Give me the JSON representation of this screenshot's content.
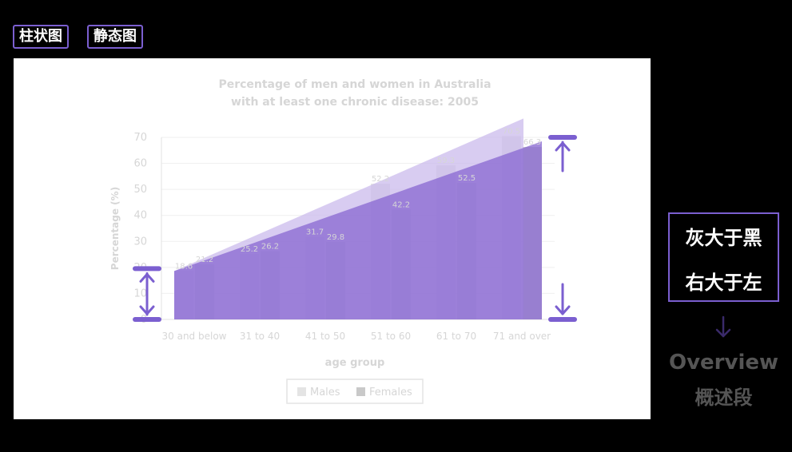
{
  "tags": [
    "柱状图",
    "静态图"
  ],
  "side_box": [
    "灰大于黑",
    "右大于左"
  ],
  "overview": [
    "Overview",
    "概述段"
  ],
  "colors": {
    "accent": "#7b5fd0",
    "males_bar": "#e4e4e4",
    "females_bar": "#c9c9c9",
    "triangle_light": "#c9b8ec",
    "triangle_dark": "#8a6ad2",
    "chart_text": "#d6d6d6"
  },
  "chart_data": {
    "type": "bar",
    "title": "Percentage of men and women in Australia",
    "subtitle": "with at least one chronic disease: 2005",
    "xlabel": "age group",
    "ylabel": "Percentage (%)",
    "categories": [
      "30 and below",
      "31 to 40",
      "41 to 50",
      "51 to 60",
      "61 to 70",
      "71 and over"
    ],
    "series": [
      {
        "name": "Males",
        "values": [
          18.6,
          25.2,
          31.7,
          52.2,
          59.3,
          70.5
        ]
      },
      {
        "name": "Females",
        "values": [
          21.2,
          26.2,
          29.8,
          42.2,
          52.5,
          66.3
        ]
      }
    ],
    "ylim": [
      0,
      70
    ],
    "yticks": [
      0,
      10,
      20,
      30,
      40,
      50,
      60,
      70
    ],
    "grid": true,
    "legend": "bottom-center"
  }
}
